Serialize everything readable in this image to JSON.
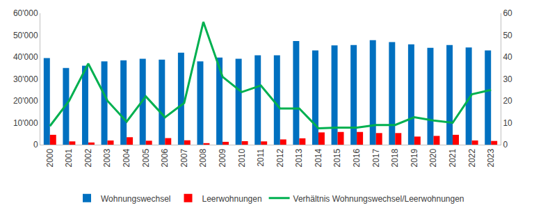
{
  "chart_data": {
    "type": "bar",
    "categories": [
      "2000",
      "2001",
      "2002",
      "2003",
      "2004",
      "2005",
      "2006",
      "2007",
      "2008",
      "2009",
      "2010",
      "2011",
      "2012",
      "2013",
      "2014",
      "2015",
      "2016",
      "2017",
      "2018",
      "2019",
      "2020",
      "2021",
      "2022",
      "2023"
    ],
    "series": [
      {
        "name": "Wohnungswechsel",
        "color": "#0070c0",
        "type": "bar",
        "axis": "y",
        "values": [
          39500,
          35000,
          36000,
          38000,
          38500,
          39200,
          38800,
          42000,
          38000,
          39800,
          39200,
          40800,
          40800,
          47300,
          43000,
          45300,
          45500,
          47700,
          46800,
          45800,
          44200,
          45500,
          44400,
          43000
        ]
      },
      {
        "name": "Leerwohnungen",
        "color": "#ff0000",
        "type": "bar",
        "axis": "y",
        "values": [
          4500,
          1500,
          1000,
          1900,
          3400,
          1800,
          3000,
          2000,
          700,
          1300,
          1600,
          1500,
          2400,
          2900,
          5600,
          5800,
          5800,
          5300,
          5300,
          3700,
          4000,
          4500,
          1900,
          1700
        ]
      },
      {
        "name": "Verhältnis Wohnungswechsel/Leerwohnungen",
        "color": "#00b050",
        "type": "line",
        "axis": "y2",
        "values": [
          8.5,
          20,
          37,
          20,
          10.5,
          22,
          12.5,
          19,
          56,
          31,
          24,
          27,
          16.5,
          16.5,
          7.5,
          7.8,
          7.8,
          9,
          9,
          12.5,
          11,
          10,
          23,
          25
        ]
      }
    ],
    "ylim": [
      0,
      60000
    ],
    "yticks": [
      0,
      {
        "value": 10000,
        "label": "10'000"
      },
      {
        "value": 20000,
        "label": "20'000"
      },
      {
        "value": 30000,
        "label": "30'000"
      },
      {
        "value": 40000,
        "label": "40'000"
      },
      {
        "value": 50000,
        "label": "50'000"
      },
      {
        "value": 60000,
        "label": "60'000"
      }
    ],
    "y2lim": [
      0,
      60
    ],
    "y2ticks": [
      0,
      10,
      20,
      30,
      40,
      50,
      60
    ],
    "grid": false,
    "legend": "bottom"
  }
}
